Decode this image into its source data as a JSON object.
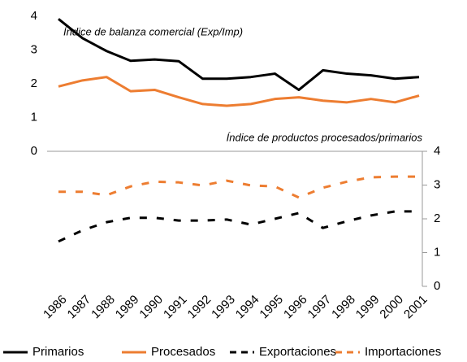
{
  "chart_data": {
    "type": "line",
    "annotations": [
      "Índice de balanza comercial (Exp/Imp)",
      "Índice de productos procesados/primarios"
    ],
    "categories": [
      "1986",
      "1987",
      "1988",
      "1989",
      "1990",
      "1991",
      "1992",
      "1993",
      "1994",
      "1995",
      "1996",
      "1997",
      "1998",
      "1999",
      "2000",
      "2001"
    ],
    "ylim": [
      0,
      4
    ],
    "yticks": [
      0,
      1,
      2,
      3,
      4
    ],
    "y2lim": [
      0,
      4
    ],
    "y2ticks": [
      0,
      1,
      2,
      3,
      4
    ],
    "legend": "bottom",
    "series": [
      {
        "name": "Primarios",
        "color": "#000000",
        "dashed": false,
        "values": [
          3.92,
          3.35,
          2.97,
          2.68,
          2.72,
          2.67,
          2.15,
          2.15,
          2.2,
          2.3,
          1.82,
          2.4,
          2.3,
          2.25,
          2.15,
          2.2
        ]
      },
      {
        "name": "Procesados",
        "color": "#ed7d31",
        "dashed": false,
        "values": [
          1.92,
          2.1,
          2.2,
          1.78,
          1.82,
          1.6,
          1.4,
          1.35,
          1.4,
          1.55,
          1.6,
          1.5,
          1.45,
          1.55,
          1.45,
          1.65
        ]
      },
      {
        "name": "Exportaciones",
        "color": "#000000",
        "dashed": true,
        "axis": "y2",
        "values": [
          1.33,
          1.66,
          1.9,
          2.03,
          2.03,
          1.95,
          1.95,
          1.98,
          1.83,
          2.0,
          2.17,
          1.73,
          1.93,
          2.1,
          2.22,
          2.22
        ]
      },
      {
        "name": "Importaciones",
        "color": "#ed7d31",
        "dashed": true,
        "axis": "y2",
        "values": [
          2.8,
          2.8,
          2.7,
          2.96,
          3.1,
          3.08,
          2.99,
          3.13,
          2.99,
          2.96,
          2.63,
          2.92,
          3.1,
          3.23,
          3.25,
          3.25
        ]
      }
    ]
  }
}
